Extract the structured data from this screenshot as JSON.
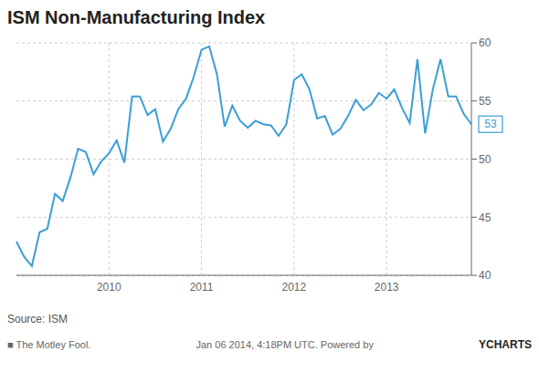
{
  "chart_data": {
    "type": "line",
    "title": "ISM Non-Manufacturing Index",
    "categories": [
      null,
      null,
      null,
      null,
      null,
      null,
      null,
      null,
      null,
      null,
      null,
      null,
      "2010",
      null,
      null,
      null,
      null,
      null,
      null,
      null,
      null,
      null,
      null,
      null,
      "2011",
      null,
      null,
      null,
      null,
      null,
      null,
      null,
      null,
      null,
      null,
      null,
      "2012",
      null,
      null,
      null,
      null,
      null,
      null,
      null,
      null,
      null,
      null,
      null,
      "2013",
      null,
      null,
      null,
      null,
      null,
      null,
      null,
      null,
      null,
      null,
      null
    ],
    "values": [
      42.9,
      41.6,
      40.8,
      43.7,
      44.0,
      47.0,
      46.4,
      48.4,
      50.9,
      50.6,
      48.7,
      49.8,
      50.5,
      51.6,
      49.7,
      55.4,
      55.4,
      53.8,
      54.3,
      51.5,
      52.6,
      54.3,
      55.2,
      57.1,
      59.4,
      59.7,
      57.3,
      52.8,
      54.6,
      53.3,
      52.7,
      53.3,
      53.0,
      52.9,
      52.0,
      53.0,
      56.8,
      57.3,
      56.0,
      53.5,
      53.7,
      52.1,
      52.6,
      53.7,
      55.1,
      54.2,
      54.7,
      55.7,
      55.2,
      56.0,
      54.4,
      53.1,
      58.6,
      52.2,
      56.0,
      58.6,
      55.4,
      55.4,
      53.9,
      53.0
    ],
    "color": "#3a9fd5",
    "ylim": [
      40,
      60
    ],
    "yticks": [
      40,
      45,
      50,
      55,
      60
    ],
    "grid": true,
    "annotations": [
      {
        "text": "53",
        "y": 53
      },
      {
        "text": "Source: ISM"
      },
      {
        "text": "■ The Motley Fool."
      },
      {
        "text": "Jan 06 2014, 4:18PM UTC.  Powered by"
      },
      {
        "text": "YCHARTS"
      }
    ]
  }
}
